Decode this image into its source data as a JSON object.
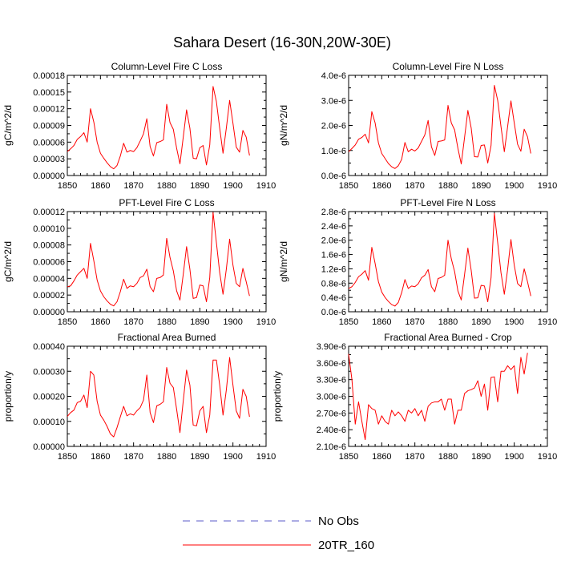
{
  "title": "Sahara Desert (16-30N,20W-30E)",
  "colors": {
    "model": "#ff0000",
    "obs": "#5a5ac8",
    "axis": "#000000"
  },
  "legend": [
    {
      "label": "No Obs",
      "style": "dashed",
      "color": "#5a5ac8"
    },
    {
      "label": "20TR_160",
      "style": "solid",
      "color": "#ff0000"
    }
  ],
  "chart_data": [
    {
      "type": "line",
      "title": "Column-Level Fire C Loss",
      "ylabel": "gC/m^2/d",
      "xlim": [
        1850,
        1910
      ],
      "ylim": [
        0,
        0.00018
      ],
      "xticks": [
        1850,
        1860,
        1870,
        1880,
        1890,
        1900,
        1910
      ],
      "yticks": [
        0,
        3e-05,
        6e-05,
        9e-05,
        0.00012,
        0.00015,
        0.00018
      ],
      "ytick_labels": [
        "0.00000",
        "0.00003",
        "0.00006",
        "0.00009",
        "0.00012",
        "0.00015",
        "0.00018"
      ],
      "x_start": 1850,
      "series": [
        {
          "name": "20TR_160",
          "values": [
            4.3e-05,
            4.8e-05,
            5.4e-05,
            6.5e-05,
            7e-05,
            7.7e-05,
            6e-05,
            0.00012,
            9.6e-05,
            6e-05,
            4e-05,
            3.1e-05,
            2.3e-05,
            1.6e-05,
            1.2e-05,
            1.8e-05,
            3.5e-05,
            5.8e-05,
            4.2e-05,
            4.5e-05,
            4.3e-05,
            5e-05,
            6.2e-05,
            7.5e-05,
            0.000102,
            5.2e-05,
            3.5e-05,
            5.9e-05,
            6.1e-05,
            6.4e-05,
            0.000128,
            9.5e-05,
            8.3e-05,
            4.9e-05,
            2.1e-05,
            6.9e-05,
            0.000118,
            8.5e-05,
            3.1e-05,
            3e-05,
            5e-05,
            5.4e-05,
            1.9e-05,
            5.5e-05,
            0.00016,
            0.000133,
            8.5e-05,
            4e-05,
            8.5e-05,
            0.000135,
            9.4e-05,
            5.1e-05,
            4.2e-05,
            8.1e-05,
            6.9e-05,
            3.6e-05
          ]
        }
      ]
    },
    {
      "type": "line",
      "title": "Column-Level Fire N Loss",
      "ylabel": "gN/m^2/d",
      "xlim": [
        1850,
        1910
      ],
      "ylim": [
        0,
        4e-06
      ],
      "xticks": [
        1850,
        1860,
        1870,
        1880,
        1890,
        1900,
        1910
      ],
      "yticks": [
        0,
        1e-06,
        2e-06,
        3e-06,
        4e-06
      ],
      "ytick_labels": [
        "0.0e-6",
        "1.0e-6",
        "2.0e-6",
        "3.0e-6",
        "4.0e-6"
      ],
      "x_start": 1850,
      "series": [
        {
          "name": "20TR_160",
          "values": [
            9.5e-07,
            1.08e-06,
            1.22e-06,
            1.45e-06,
            1.52e-06,
            1.65e-06,
            1.3e-06,
            2.55e-06,
            2.1e-06,
            1.3e-06,
            8.8e-07,
            6.8e-07,
            4.8e-07,
            3.5e-07,
            2.8e-07,
            3.9e-07,
            6.4e-07,
            1.32e-06,
            9.5e-07,
            1.05e-06,
            9.8e-07,
            1.1e-06,
            1.36e-06,
            1.62e-06,
            2.2e-06,
            1.15e-06,
            8e-07,
            1.36e-06,
            1.38e-06,
            1.42e-06,
            2.8e-06,
            2.1e-06,
            1.82e-06,
            1.08e-06,
            4.6e-07,
            1.52e-06,
            2.6e-06,
            1.9e-06,
            7.5e-07,
            7.4e-07,
            1.2e-06,
            1.22e-06,
            5e-07,
            1.2e-06,
            3.6e-06,
            3e-06,
            1.95e-06,
            9.5e-07,
            1.95e-06,
            2.98e-06,
            2.1e-06,
            1.25e-06,
            9.7e-07,
            1.85e-06,
            1.55e-06,
            8.8e-07
          ]
        }
      ]
    },
    {
      "type": "line",
      "title": "PFT-Level Fire C Loss",
      "ylabel": "gC/m^2/d",
      "xlim": [
        1850,
        1910
      ],
      "ylim": [
        0,
        0.00012
      ],
      "xticks": [
        1850,
        1860,
        1870,
        1880,
        1890,
        1900,
        1910
      ],
      "yticks": [
        0,
        2e-05,
        4e-05,
        6e-05,
        8e-05,
        0.0001,
        0.00012
      ],
      "ytick_labels": [
        "0.00000",
        "0.00002",
        "0.00004",
        "0.00006",
        "0.00008",
        "0.00010",
        "0.00012"
      ],
      "x_start": 1850,
      "series": [
        {
          "name": "20TR_160",
          "values": [
            3e-05,
            3.1e-05,
            3.7e-05,
            4.4e-05,
            4.8e-05,
            5.2e-05,
            4e-05,
            8.2e-05,
            6.1e-05,
            3.8e-05,
            2.5e-05,
            1.8e-05,
            1.3e-05,
            9e-06,
            7e-06,
            1.2e-05,
            2.4e-05,
            3.9e-05,
            2.8e-05,
            3.1e-05,
            3e-05,
            3.4e-05,
            4.1e-05,
            4.3e-05,
            5.1e-05,
            3e-05,
            2.4e-05,
            4e-05,
            4.1e-05,
            4.4e-05,
            8.8e-05,
            6.5e-05,
            4.9e-05,
            2.5e-05,
            1.4e-05,
            4.5e-05,
            7.8e-05,
            5.1e-05,
            1.6e-05,
            1.7e-05,
            3.2e-05,
            3.1e-05,
            1.2e-05,
            4.1e-05,
            0.000119,
            8.3e-05,
            4.7e-05,
            2.1e-05,
            5.1e-05,
            8.7e-05,
            5.6e-05,
            3.4e-05,
            3e-05,
            5.2e-05,
            3.6e-05,
            1.9e-05
          ]
        }
      ]
    },
    {
      "type": "line",
      "title": "PFT-Level Fire N Loss",
      "ylabel": "gN/m^2/d",
      "xlim": [
        1850,
        1910
      ],
      "ylim": [
        0,
        2.8e-06
      ],
      "xticks": [
        1850,
        1860,
        1870,
        1880,
        1890,
        1900,
        1910
      ],
      "yticks": [
        0,
        4e-07,
        8e-07,
        1.2e-06,
        1.6e-06,
        2e-06,
        2.4e-06,
        2.8e-06
      ],
      "ytick_labels": [
        "0.0e-6",
        "0.4e-6",
        "0.8e-6",
        "1.2e-6",
        "1.6e-6",
        "2.0e-6",
        "2.4e-6",
        "2.8e-6"
      ],
      "x_start": 1850,
      "series": [
        {
          "name": "20TR_160",
          "values": [
            6.5e-07,
            7e-07,
            8.2e-07,
            9.8e-07,
            1.05e-06,
            1.15e-06,
            8.8e-07,
            1.8e-06,
            1.35e-06,
            8.4e-07,
            5.5e-07,
            4e-07,
            2.9e-07,
            2e-07,
            1.6e-07,
            2.6e-07,
            5.3e-07,
            9e-07,
            6.5e-07,
            7.2e-07,
            7e-07,
            7.8e-07,
            9.5e-07,
            1.02e-06,
            1.18e-06,
            7e-07,
            5.6e-07,
            9.3e-07,
            9.6e-07,
            1.02e-06,
            2e-06,
            1.48e-06,
            1.12e-06,
            5.8e-07,
            3.3e-07,
            1.04e-06,
            1.78e-06,
            1.16e-06,
            3.8e-07,
            3.9e-07,
            7.4e-07,
            7.2e-07,
            2.8e-07,
            9.5e-07,
            2.75e-06,
            1.93e-06,
            1.09e-06,
            4.9e-07,
            1.18e-06,
            2.02e-06,
            1.3e-06,
            7.9e-07,
            7e-07,
            1.2e-06,
            8.4e-07,
            4.4e-07
          ]
        }
      ]
    },
    {
      "type": "line",
      "title": "Fractional Area Burned",
      "ylabel": "proportion/y",
      "xlim": [
        1850,
        1910
      ],
      "ylim": [
        0,
        0.0004
      ],
      "xticks": [
        1850,
        1860,
        1870,
        1880,
        1890,
        1900,
        1910
      ],
      "yticks": [
        0,
        0.0001,
        0.0002,
        0.0003,
        0.0004
      ],
      "ytick_labels": [
        "0.00000",
        "0.00010",
        "0.00020",
        "0.00030",
        "0.00040"
      ],
      "x_start": 1850,
      "series": [
        {
          "name": "20TR_160",
          "values": [
            0.00012,
            0.000135,
            0.000145,
            0.000175,
            0.00018,
            0.000205,
            0.000155,
            0.0003,
            0.000285,
            0.00018,
            0.000125,
            0.000105,
            8e-05,
            5e-05,
            3.8e-05,
            7.5e-05,
            0.000118,
            0.00016,
            0.000122,
            0.00013,
            0.000125,
            0.000142,
            0.000155,
            0.000185,
            0.000285,
            0.000135,
            9.5e-05,
            0.000162,
            0.000168,
            0.000178,
            0.000315,
            0.000252,
            0.000235,
            0.000148,
            5.5e-05,
            0.000182,
            0.000305,
            0.000245,
            8.5e-05,
            8.2e-05,
            0.000142,
            0.00016,
            5.5e-05,
            0.000125,
            0.000345,
            0.000345,
            0.000245,
            0.000125,
            0.000225,
            0.000355,
            0.000245,
            0.000142,
            0.000112,
            0.000228,
            0.0002,
            0.000118
          ]
        }
      ]
    },
    {
      "type": "line",
      "title": "Fractional Area Burned - Crop",
      "ylabel": "proportion/y",
      "xlim": [
        1850,
        1910
      ],
      "ylim": [
        2.1e-06,
        3.9e-06
      ],
      "xticks": [
        1850,
        1860,
        1870,
        1880,
        1890,
        1900,
        1910
      ],
      "yticks": [
        2.1e-06,
        2.4e-06,
        2.7e-06,
        3e-06,
        3.3e-06,
        3.6e-06,
        3.9e-06
      ],
      "ytick_labels": [
        "2.10e-6",
        "2.40e-6",
        "2.70e-6",
        "3.00e-6",
        "3.30e-6",
        "3.60e-6",
        "3.90e-6"
      ],
      "x_start": 1850,
      "series": [
        {
          "name": "20TR_160",
          "values": [
            3.76e-06,
            3.3e-06,
            2.5e-06,
            2.9e-06,
            2.55e-06,
            2.22e-06,
            2.85e-06,
            2.78e-06,
            2.75e-06,
            2.5e-06,
            2.65e-06,
            2.55e-06,
            2.5e-06,
            2.75e-06,
            2.65e-06,
            2.72e-06,
            2.65e-06,
            2.55e-06,
            2.75e-06,
            2.7e-06,
            2.78e-06,
            2.65e-06,
            2.75e-06,
            2.55e-06,
            2.82e-06,
            2.88e-06,
            2.9e-06,
            2.9e-06,
            2.95e-06,
            2.75e-06,
            2.95e-06,
            2.95e-06,
            2.5e-06,
            2.75e-06,
            2.75e-06,
            3.05e-06,
            3.1e-06,
            3.12e-06,
            3.15e-06,
            3.28e-06,
            3e-06,
            3.22e-06,
            2.75e-06,
            3.34e-06,
            3.35e-06,
            2.9e-06,
            3.45e-06,
            3.45e-06,
            3.55e-06,
            3.48e-06,
            3.55e-06,
            3.05e-06,
            3.7e-06,
            3.4e-06,
            3.78e-06
          ]
        }
      ]
    }
  ]
}
